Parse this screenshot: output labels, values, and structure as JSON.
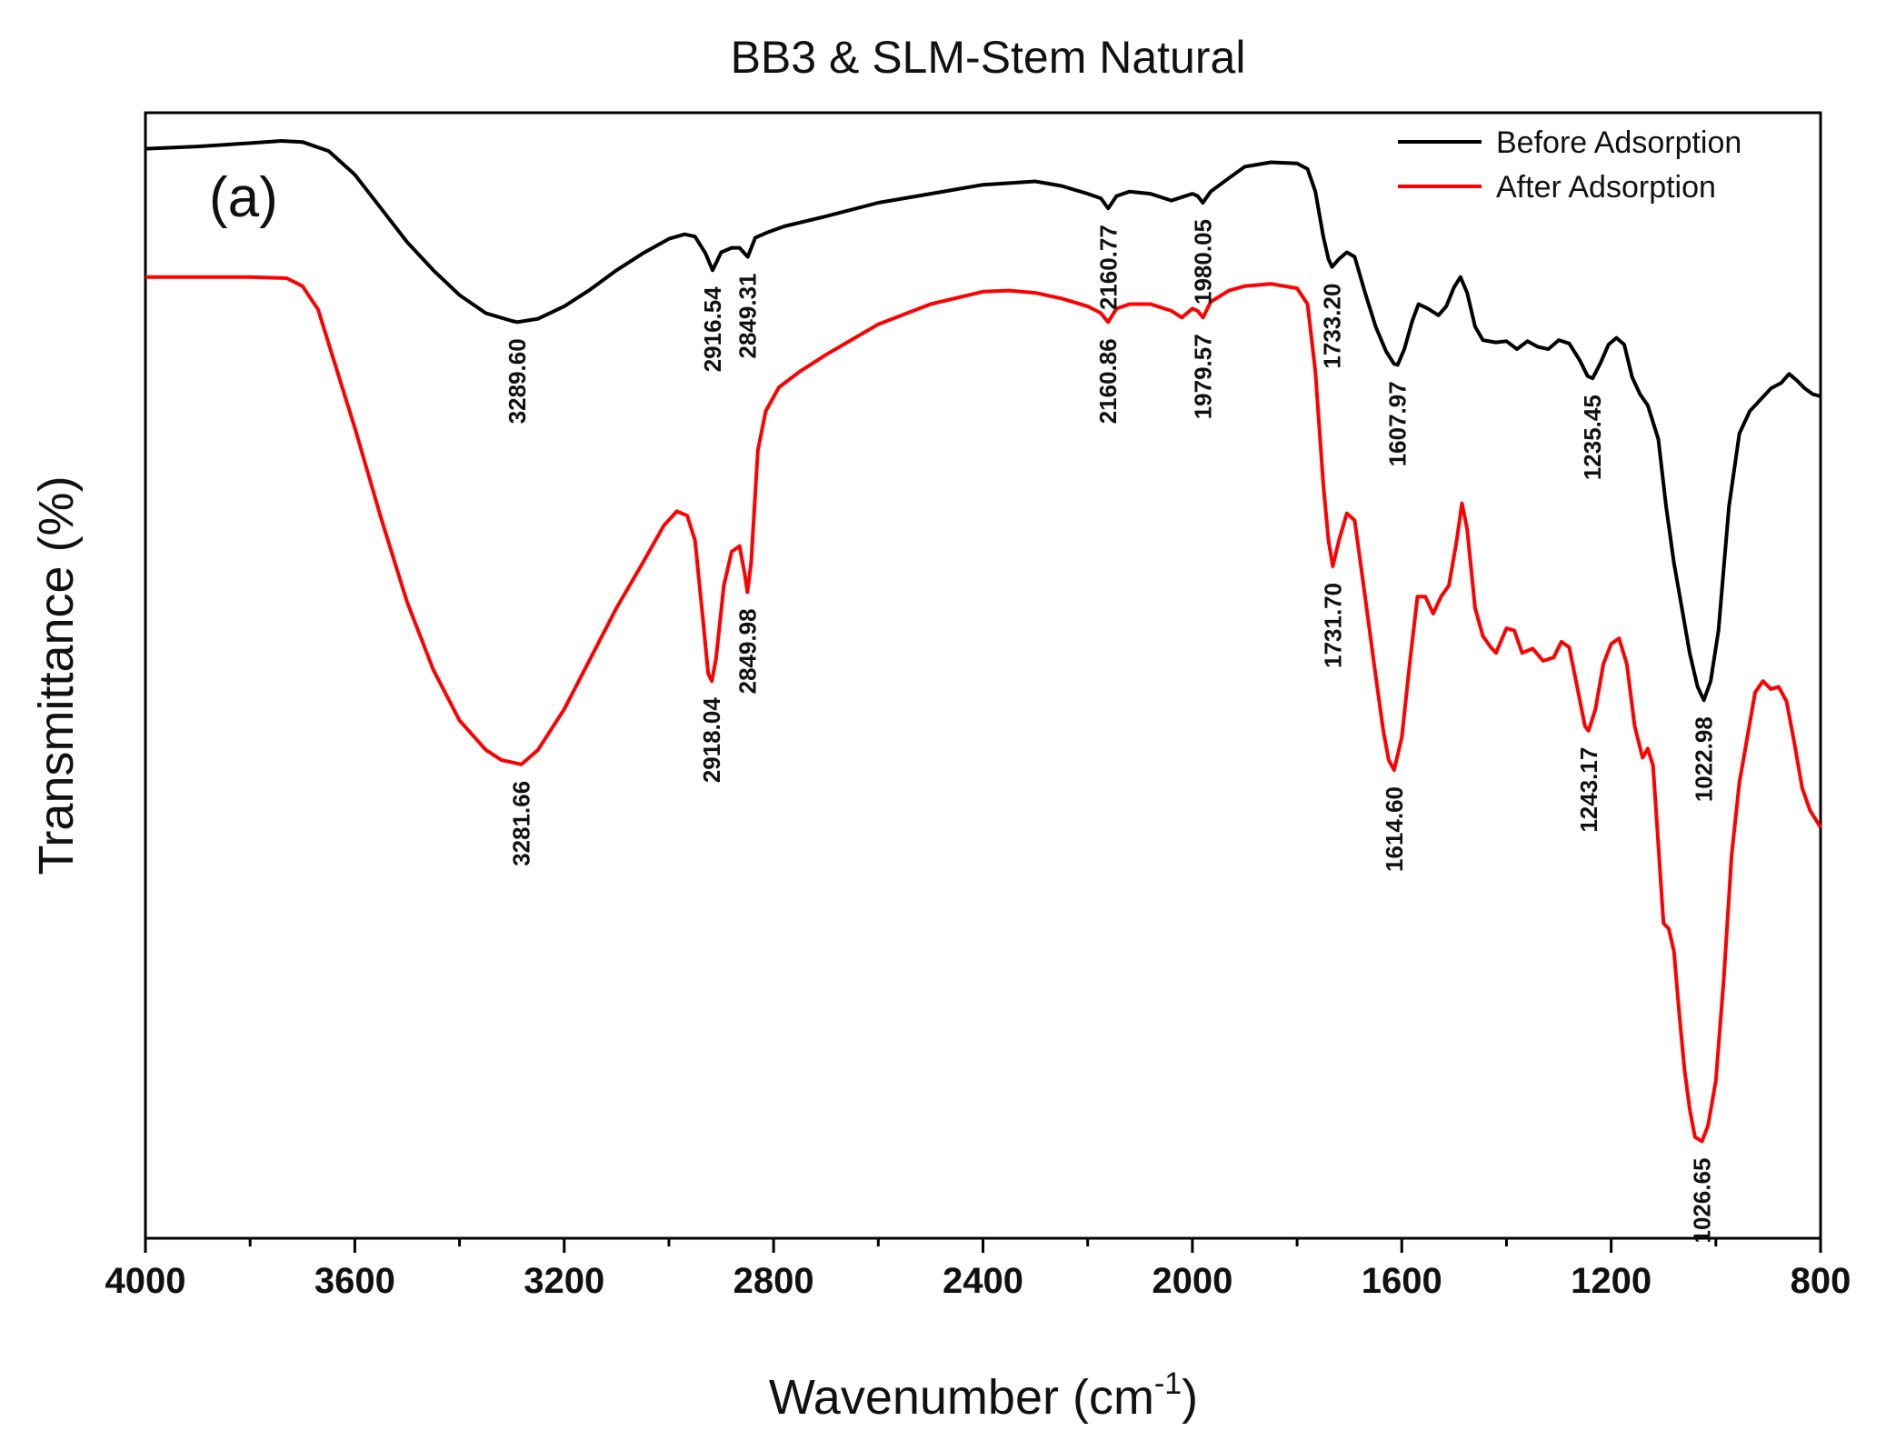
{
  "chart_data": {
    "type": "line",
    "title": "BB3 & SLM-Stem Natural",
    "panel_label": "(a)",
    "xlabel": "Wavenumber (cm",
    "xlabel_sup": "-1",
    "xlabel_close": ")",
    "ylabel": "Transmittance (%)",
    "xlim": [
      4000,
      800
    ],
    "ylim": [
      0,
      100
    ],
    "x_reversed": true,
    "grid": false,
    "legend_position": "top-right",
    "x_ticks": [
      4000,
      3600,
      3200,
      2800,
      2400,
      2000,
      1600,
      1200,
      800
    ],
    "x_tick_labels": [
      "4000",
      "3600",
      "3200",
      "2800",
      "2400",
      "2000",
      "1600",
      "1200",
      "800"
    ],
    "y_tick_labels_shown": false,
    "series": [
      {
        "name": "Before Adsorption",
        "color": "#000000",
        "points": [
          [
            4000,
            96.8
          ],
          [
            3900,
            97.0
          ],
          [
            3800,
            97.3
          ],
          [
            3740,
            97.5
          ],
          [
            3700,
            97.4
          ],
          [
            3650,
            96.6
          ],
          [
            3600,
            94.5
          ],
          [
            3550,
            91.5
          ],
          [
            3500,
            88.5
          ],
          [
            3450,
            86.0
          ],
          [
            3400,
            83.8
          ],
          [
            3350,
            82.2
          ],
          [
            3300,
            81.5
          ],
          [
            3289.6,
            81.4
          ],
          [
            3250,
            81.7
          ],
          [
            3200,
            82.8
          ],
          [
            3150,
            84.3
          ],
          [
            3100,
            86.0
          ],
          [
            3050,
            87.5
          ],
          [
            3000,
            88.8
          ],
          [
            2970,
            89.2
          ],
          [
            2950,
            89.0
          ],
          [
            2930,
            87.5
          ],
          [
            2916.54,
            86.0
          ],
          [
            2900,
            87.6
          ],
          [
            2880,
            88.0
          ],
          [
            2865,
            88.0
          ],
          [
            2849.31,
            87.2
          ],
          [
            2835,
            88.9
          ],
          [
            2810,
            89.4
          ],
          [
            2780,
            89.9
          ],
          [
            2700,
            90.8
          ],
          [
            2600,
            92.0
          ],
          [
            2500,
            92.8
          ],
          [
            2400,
            93.6
          ],
          [
            2300,
            93.9
          ],
          [
            2250,
            93.5
          ],
          [
            2200,
            92.8
          ],
          [
            2175,
            92.4
          ],
          [
            2160.77,
            91.5
          ],
          [
            2145,
            92.6
          ],
          [
            2120,
            93.0
          ],
          [
            2080,
            92.8
          ],
          [
            2040,
            92.2
          ],
          [
            2020,
            92.5
          ],
          [
            2000,
            92.8
          ],
          [
            1990,
            92.6
          ],
          [
            1980.05,
            92.0
          ],
          [
            1965,
            93.0
          ],
          [
            1930,
            94.2
          ],
          [
            1900,
            95.2
          ],
          [
            1850,
            95.6
          ],
          [
            1800,
            95.5
          ],
          [
            1780,
            95.0
          ],
          [
            1765,
            93.0
          ],
          [
            1750,
            89.0
          ],
          [
            1740,
            87.0
          ],
          [
            1733.2,
            86.3
          ],
          [
            1720,
            87.0
          ],
          [
            1705,
            87.6
          ],
          [
            1690,
            87.2
          ],
          [
            1670,
            84.0
          ],
          [
            1650,
            81.0
          ],
          [
            1630,
            78.8
          ],
          [
            1615,
            77.7
          ],
          [
            1607.97,
            77.6
          ],
          [
            1595,
            79.0
          ],
          [
            1580,
            81.5
          ],
          [
            1568,
            83.0
          ],
          [
            1550,
            82.6
          ],
          [
            1530,
            82.0
          ],
          [
            1515,
            82.8
          ],
          [
            1500,
            84.5
          ],
          [
            1488,
            85.4
          ],
          [
            1475,
            84.0
          ],
          [
            1460,
            81.0
          ],
          [
            1445,
            79.8
          ],
          [
            1420,
            79.6
          ],
          [
            1400,
            79.7
          ],
          [
            1380,
            79.0
          ],
          [
            1360,
            79.7
          ],
          [
            1340,
            79.2
          ],
          [
            1320,
            79.0
          ],
          [
            1300,
            79.8
          ],
          [
            1280,
            79.5
          ],
          [
            1260,
            78.0
          ],
          [
            1245,
            76.6
          ],
          [
            1235.45,
            76.4
          ],
          [
            1220,
            77.8
          ],
          [
            1205,
            79.4
          ],
          [
            1190,
            80.0
          ],
          [
            1175,
            79.4
          ],
          [
            1160,
            76.5
          ],
          [
            1145,
            75.0
          ],
          [
            1130,
            74.0
          ],
          [
            1110,
            71.0
          ],
          [
            1095,
            65.0
          ],
          [
            1080,
            60.0
          ],
          [
            1065,
            56.0
          ],
          [
            1050,
            52.0
          ],
          [
            1035,
            49.0
          ],
          [
            1022.98,
            47.8
          ],
          [
            1010,
            49.5
          ],
          [
            995,
            54.0
          ],
          [
            975,
            65.0
          ],
          [
            955,
            71.5
          ],
          [
            935,
            73.5
          ],
          [
            915,
            74.5
          ],
          [
            895,
            75.5
          ],
          [
            875,
            76.0
          ],
          [
            860,
            76.8
          ],
          [
            845,
            76.2
          ],
          [
            830,
            75.5
          ],
          [
            815,
            75.0
          ],
          [
            800,
            74.8
          ]
        ]
      },
      {
        "name": "After Adsorption",
        "color": "#ff0000",
        "points": [
          [
            4000,
            85.4
          ],
          [
            3900,
            85.4
          ],
          [
            3800,
            85.4
          ],
          [
            3730,
            85.3
          ],
          [
            3700,
            84.6
          ],
          [
            3670,
            82.5
          ],
          [
            3640,
            78.0
          ],
          [
            3600,
            72.0
          ],
          [
            3550,
            64.0
          ],
          [
            3500,
            56.5
          ],
          [
            3450,
            50.5
          ],
          [
            3400,
            46.0
          ],
          [
            3350,
            43.4
          ],
          [
            3320,
            42.5
          ],
          [
            3281.66,
            42.1
          ],
          [
            3250,
            43.4
          ],
          [
            3200,
            47.0
          ],
          [
            3150,
            51.5
          ],
          [
            3100,
            56.0
          ],
          [
            3050,
            60.0
          ],
          [
            3010,
            63.3
          ],
          [
            2985,
            64.6
          ],
          [
            2965,
            64.2
          ],
          [
            2950,
            62.0
          ],
          [
            2935,
            55.0
          ],
          [
            2925,
            50.2
          ],
          [
            2918.04,
            49.5
          ],
          [
            2910,
            51.5
          ],
          [
            2895,
            58.0
          ],
          [
            2880,
            61.0
          ],
          [
            2865,
            61.5
          ],
          [
            2855,
            59.0
          ],
          [
            2849.98,
            57.4
          ],
          [
            2843,
            60.0
          ],
          [
            2830,
            70.0
          ],
          [
            2815,
            73.5
          ],
          [
            2790,
            75.6
          ],
          [
            2750,
            77.0
          ],
          [
            2700,
            78.5
          ],
          [
            2600,
            81.2
          ],
          [
            2500,
            83.0
          ],
          [
            2400,
            84.1
          ],
          [
            2350,
            84.2
          ],
          [
            2300,
            84.0
          ],
          [
            2250,
            83.5
          ],
          [
            2200,
            82.8
          ],
          [
            2175,
            82.2
          ],
          [
            2160.86,
            81.4
          ],
          [
            2145,
            82.6
          ],
          [
            2120,
            83.0
          ],
          [
            2080,
            83.0
          ],
          [
            2040,
            82.4
          ],
          [
            2020,
            81.8
          ],
          [
            2000,
            82.6
          ],
          [
            1990,
            82.4
          ],
          [
            1979.57,
            81.8
          ],
          [
            1965,
            83.2
          ],
          [
            1930,
            84.2
          ],
          [
            1900,
            84.6
          ],
          [
            1850,
            84.8
          ],
          [
            1800,
            84.4
          ],
          [
            1780,
            83.0
          ],
          [
            1765,
            77.0
          ],
          [
            1750,
            67.0
          ],
          [
            1740,
            62.0
          ],
          [
            1731.7,
            59.7
          ],
          [
            1720,
            62.0
          ],
          [
            1705,
            64.4
          ],
          [
            1690,
            63.8
          ],
          [
            1670,
            57.0
          ],
          [
            1650,
            50.0
          ],
          [
            1635,
            45.0
          ],
          [
            1625,
            42.5
          ],
          [
            1614.6,
            41.6
          ],
          [
            1600,
            44.5
          ],
          [
            1585,
            51.0
          ],
          [
            1570,
            57.0
          ],
          [
            1555,
            57.0
          ],
          [
            1540,
            55.5
          ],
          [
            1525,
            57.0
          ],
          [
            1510,
            58.0
          ],
          [
            1495,
            62.0
          ],
          [
            1485,
            65.3
          ],
          [
            1475,
            63.0
          ],
          [
            1460,
            56.0
          ],
          [
            1445,
            53.5
          ],
          [
            1430,
            52.5
          ],
          [
            1420,
            52.0
          ],
          [
            1400,
            54.2
          ],
          [
            1385,
            54.0
          ],
          [
            1370,
            52.0
          ],
          [
            1350,
            52.4
          ],
          [
            1330,
            51.3
          ],
          [
            1310,
            51.6
          ],
          [
            1295,
            53.0
          ],
          [
            1280,
            52.5
          ],
          [
            1265,
            49.0
          ],
          [
            1250,
            45.5
          ],
          [
            1243.17,
            45.1
          ],
          [
            1230,
            47.0
          ],
          [
            1215,
            51.0
          ],
          [
            1200,
            52.8
          ],
          [
            1185,
            53.3
          ],
          [
            1170,
            51.0
          ],
          [
            1155,
            45.5
          ],
          [
            1140,
            42.7
          ],
          [
            1130,
            43.5
          ],
          [
            1120,
            42.0
          ],
          [
            1110,
            35.0
          ],
          [
            1100,
            28.0
          ],
          [
            1090,
            27.5
          ],
          [
            1080,
            25.5
          ],
          [
            1070,
            20.0
          ],
          [
            1060,
            15.0
          ],
          [
            1050,
            11.5
          ],
          [
            1040,
            9.0
          ],
          [
            1026.65,
            8.6
          ],
          [
            1015,
            10.0
          ],
          [
            1000,
            14.0
          ],
          [
            985,
            23.0
          ],
          [
            970,
            34.0
          ],
          [
            955,
            40.5
          ],
          [
            940,
            44.5
          ],
          [
            925,
            48.5
          ],
          [
            910,
            49.5
          ],
          [
            895,
            48.8
          ],
          [
            880,
            49.0
          ],
          [
            865,
            47.7
          ],
          [
            850,
            44.0
          ],
          [
            835,
            40.0
          ],
          [
            820,
            38.0
          ],
          [
            800,
            36.5
          ]
        ]
      }
    ],
    "annotations": [
      {
        "series": "Before Adsorption",
        "x": 3289.6,
        "label": "3289.60"
      },
      {
        "series": "Before Adsorption",
        "x": 2916.54,
        "label": "2916.54"
      },
      {
        "series": "Before Adsorption",
        "x": 2849.31,
        "label": "2849.31"
      },
      {
        "series": "Before Adsorption",
        "x": 2160.77,
        "label": "2160.77"
      },
      {
        "series": "Before Adsorption",
        "x": 1980.05,
        "label": "1980.05"
      },
      {
        "series": "Before Adsorption",
        "x": 1733.2,
        "label": "1733.20"
      },
      {
        "series": "Before Adsorption",
        "x": 1607.97,
        "label": "1607.97"
      },
      {
        "series": "Before Adsorption",
        "x": 1235.45,
        "label": "1235.45"
      },
      {
        "series": "Before Adsorption",
        "x": 1022.98,
        "label": "1022.98"
      },
      {
        "series": "After Adsorption",
        "x": 3281.66,
        "label": "3281.66"
      },
      {
        "series": "After Adsorption",
        "x": 2918.04,
        "label": "2918.04"
      },
      {
        "series": "After Adsorption",
        "x": 2849.98,
        "label": "2849.98"
      },
      {
        "series": "After Adsorption",
        "x": 2160.86,
        "label": "2160.86"
      },
      {
        "series": "After Adsorption",
        "x": 1979.57,
        "label": "1979.57"
      },
      {
        "series": "After Adsorption",
        "x": 1731.7,
        "label": "1731.70"
      },
      {
        "series": "After Adsorption",
        "x": 1614.6,
        "label": "1614.60"
      },
      {
        "series": "After Adsorption",
        "x": 1243.17,
        "label": "1243.17"
      },
      {
        "series": "After Adsorption",
        "x": 1026.65,
        "label": "1026.65"
      }
    ]
  }
}
